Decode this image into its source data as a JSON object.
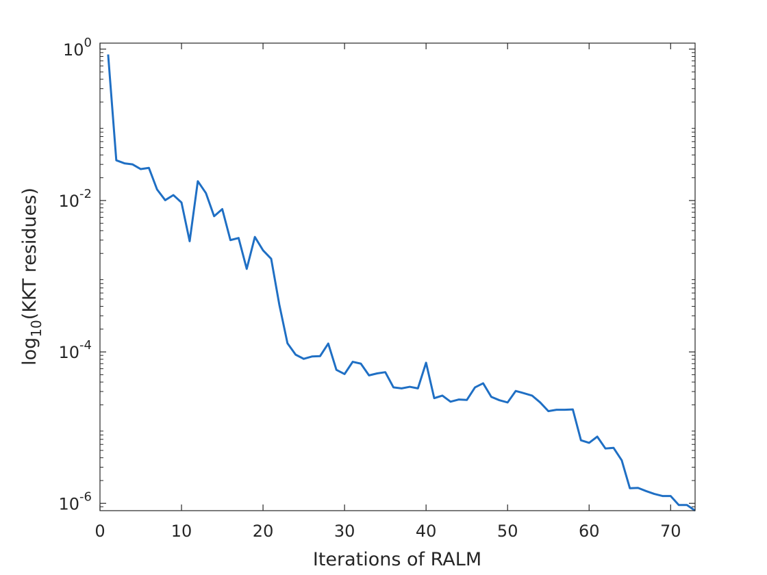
{
  "chart_data": {
    "type": "line",
    "xlabel": "Iterations of RALM",
    "ylabel_main": "log",
    "ylabel_sub": "10",
    "ylabel_rest": "(KKT residues)",
    "xlim": [
      0,
      73
    ],
    "ylim": [
      8e-07,
      1.2
    ],
    "yscale": "log",
    "grid": false,
    "x_ticks": [
      0,
      10,
      20,
      30,
      40,
      50,
      60,
      70
    ],
    "y_ticks": [
      {
        "value": 1,
        "base": "10",
        "exp": "0"
      },
      {
        "value": 0.01,
        "base": "10",
        "exp": "-2"
      },
      {
        "value": 0.0001,
        "base": "10",
        "exp": "-4"
      },
      {
        "value": 1e-06,
        "base": "10",
        "exp": "-6"
      }
    ],
    "series": [
      {
        "color": "#1f6fc4",
        "x": [
          1,
          2,
          3,
          4,
          5,
          6,
          7,
          8,
          9,
          10,
          11,
          12,
          13,
          14,
          15,
          16,
          17,
          18,
          19,
          20,
          21,
          22,
          23,
          24,
          25,
          26,
          27,
          28,
          29,
          30,
          31,
          32,
          33,
          34,
          35,
          36,
          37,
          38,
          39,
          40,
          41,
          42,
          43,
          44,
          45,
          46,
          47,
          48,
          49,
          50,
          51,
          52,
          53,
          54,
          55,
          56,
          57,
          58,
          59,
          60,
          61,
          62,
          63,
          64,
          65,
          66,
          67,
          68,
          69,
          70,
          71,
          72,
          73
        ],
        "y": [
          0.85,
          0.034,
          0.031,
          0.03,
          0.026,
          0.027,
          0.014,
          0.0101,
          0.0118,
          0.0094,
          0.0029,
          0.018,
          0.0125,
          0.0062,
          0.0077,
          0.003,
          0.0032,
          0.00125,
          0.0033,
          0.0022,
          0.0017,
          0.00042,
          0.00013,
          9.2e-05,
          8.1e-05,
          8.7e-05,
          8.8e-05,
          0.000129,
          5.8e-05,
          5.1e-05,
          7.4e-05,
          7e-05,
          4.9e-05,
          5.2e-05,
          5.4e-05,
          3.4e-05,
          3.3e-05,
          3.46e-05,
          3.3e-05,
          7.2e-05,
          2.45e-05,
          2.65e-05,
          2.2e-05,
          2.35e-05,
          2.32e-05,
          3.4e-05,
          3.85e-05,
          2.55e-05,
          2.3e-05,
          2.15e-05,
          3.05e-05,
          2.85e-05,
          2.65e-05,
          2.15e-05,
          1.65e-05,
          1.72e-05,
          1.72e-05,
          1.74e-05,
          6.8e-06,
          6.3e-06,
          7.6e-06,
          5.3e-06,
          5.4e-06,
          3.7e-06,
          1.58e-06,
          1.6e-06,
          1.45e-06,
          1.33e-06,
          1.25e-06,
          1.25e-06,
          9.5e-07,
          9.5e-07,
          8e-07
        ]
      }
    ]
  }
}
